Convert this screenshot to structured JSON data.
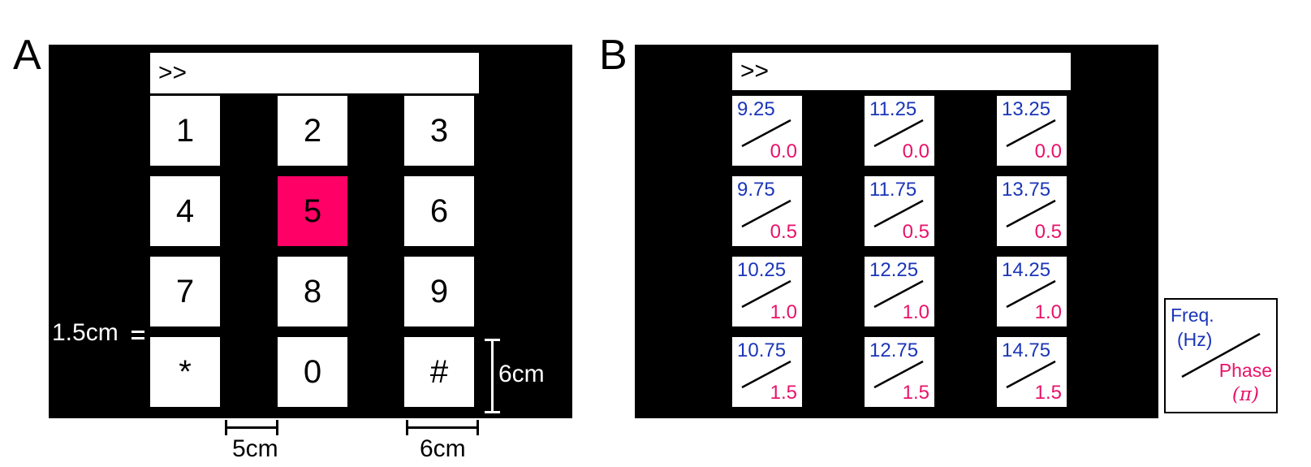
{
  "panel_a": {
    "letter": "A",
    "display_text": ">>",
    "keys": [
      "1",
      "2",
      "3",
      "4",
      "5",
      "6",
      "7",
      "8",
      "9",
      "*",
      "0",
      "#"
    ],
    "highlighted_key": "5",
    "highlight_color": "#ff0066",
    "labels": {
      "gap": "1.5cm",
      "height": "6cm",
      "spacing": "5cm",
      "width": "6cm"
    }
  },
  "panel_b": {
    "letter": "B",
    "display_text": ">>",
    "keys": [
      {
        "freq": "9.25",
        "phase": "0.0"
      },
      {
        "freq": "11.25",
        "phase": "0.0"
      },
      {
        "freq": "13.25",
        "phase": "0.0"
      },
      {
        "freq": "9.75",
        "phase": "0.5"
      },
      {
        "freq": "11.75",
        "phase": "0.5"
      },
      {
        "freq": "13.75",
        "phase": "0.5"
      },
      {
        "freq": "10.25",
        "phase": "1.0"
      },
      {
        "freq": "12.25",
        "phase": "1.0"
      },
      {
        "freq": "14.25",
        "phase": "1.0"
      },
      {
        "freq": "10.75",
        "phase": "1.5"
      },
      {
        "freq": "12.75",
        "phase": "1.5"
      },
      {
        "freq": "14.75",
        "phase": "1.5"
      }
    ],
    "freq_color": "#1a35b8",
    "phase_color": "#e8126a",
    "legend": {
      "freq_label": "Freq.",
      "freq_unit": "(Hz)",
      "phase_label": "Phase",
      "phase_unit": "(π)"
    }
  }
}
